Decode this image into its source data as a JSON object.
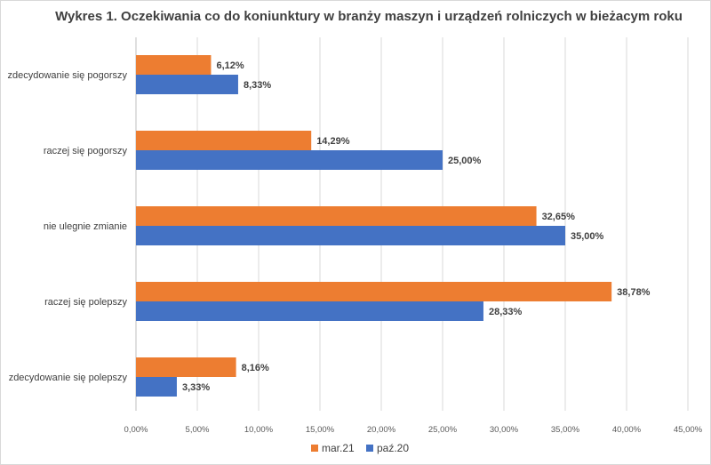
{
  "chart_data": {
    "type": "bar",
    "orientation": "horizontal",
    "title": "Wykres 1. Oczekiwania co do koniunktury  w branży  maszyn i urządzeń  rolniczych w bieżacym roku",
    "categories": [
      "zdecydowanie się pogorszy",
      "raczej się pogorszy",
      "nie ulegnie zmianie",
      "raczej się polepszy",
      "zdecydowanie się polepszy"
    ],
    "series": [
      {
        "name": "mar.21",
        "color": "#ed7d31",
        "values": [
          6.12,
          14.29,
          32.65,
          38.78,
          8.16
        ],
        "labels": [
          "6,12%",
          "14,29%",
          "32,65%",
          "38,78%",
          "8,16%"
        ]
      },
      {
        "name": "paź.20",
        "color": "#4472c4",
        "values": [
          8.33,
          25.0,
          35.0,
          28.33,
          3.33
        ],
        "labels": [
          "8,33%",
          "25,00%",
          "35,00%",
          "28,33%",
          "3,33%"
        ]
      }
    ],
    "xlim": [
      0,
      45
    ],
    "xticks": [
      "0,00%",
      "5,00%",
      "10,00%",
      "15,00%",
      "20,00%",
      "25,00%",
      "30,00%",
      "35,00%",
      "40,00%",
      "45,00%"
    ],
    "grid": true,
    "legend": "bottom"
  }
}
